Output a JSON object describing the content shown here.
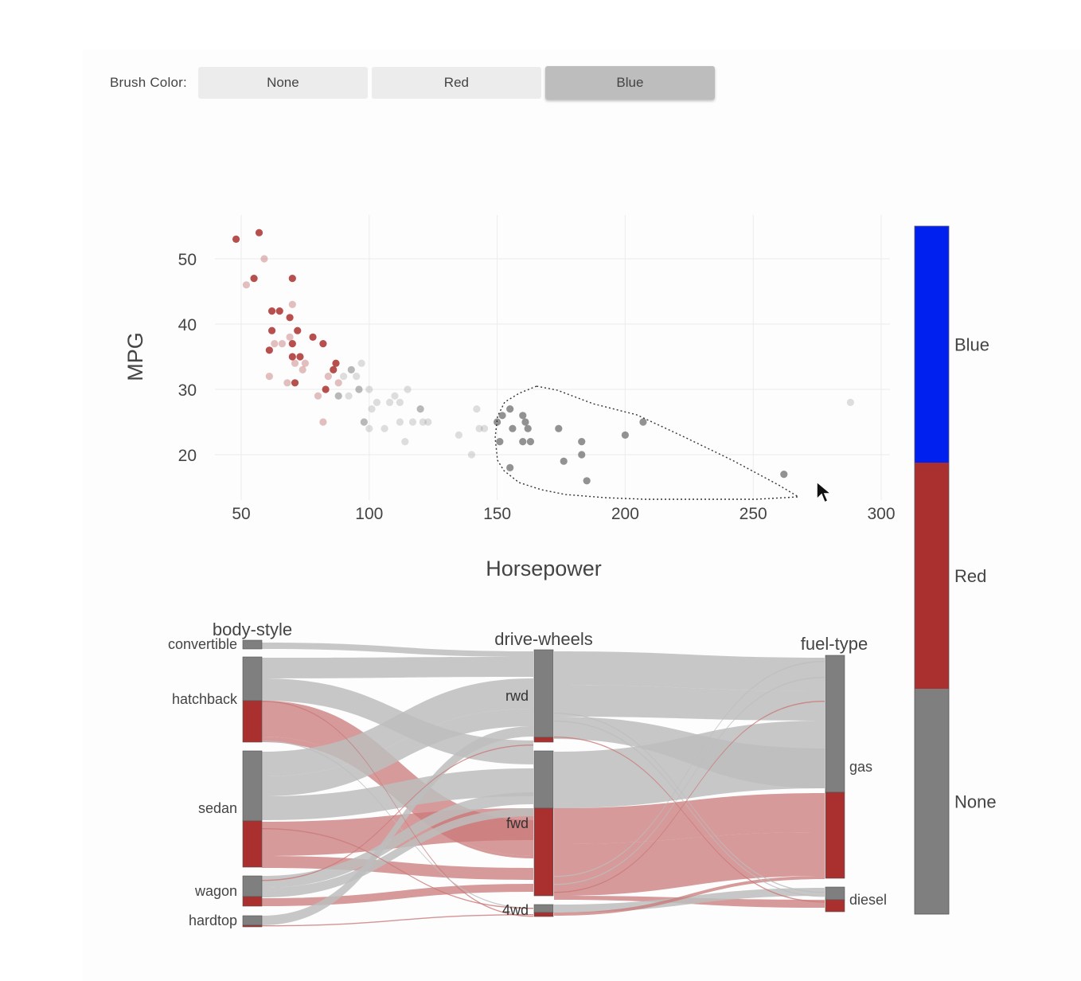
{
  "toolbar": {
    "label": "Brush Color:",
    "buttons": [
      {
        "label": "None",
        "active": false
      },
      {
        "label": "Red",
        "active": false
      },
      {
        "label": "Blue",
        "active": true
      }
    ]
  },
  "colors": {
    "none": "#7f7f7f",
    "red": "#a9302e",
    "blue": "#0020f0",
    "link_grey": "#bdbdbd",
    "link_red": "#c97878"
  },
  "chart_data": [
    {
      "type": "scatter",
      "xlabel": "Horsepower",
      "ylabel": "MPG",
      "xlim": [
        40,
        303
      ],
      "ylim": [
        13,
        57
      ],
      "xticks": [
        50,
        100,
        150,
        200,
        250,
        300
      ],
      "yticks": [
        20,
        30,
        40,
        50
      ],
      "grid": true,
      "series": [
        {
          "name": "Red",
          "points": [
            [
              48,
              53
            ],
            [
              52,
              46
            ],
            [
              57,
              54
            ],
            [
              59,
              50
            ],
            [
              55,
              47
            ],
            [
              62,
              42
            ],
            [
              65,
              42
            ],
            [
              62,
              39
            ],
            [
              63,
              37
            ],
            [
              61,
              36
            ],
            [
              61,
              32
            ],
            [
              66,
              37
            ],
            [
              69,
              38
            ],
            [
              69,
              41
            ],
            [
              70,
              43
            ],
            [
              70,
              47
            ],
            [
              70,
              37
            ],
            [
              71,
              34
            ],
            [
              72,
              39
            ],
            [
              68,
              31
            ],
            [
              71,
              31
            ],
            [
              74,
              33
            ],
            [
              75,
              34
            ],
            [
              78,
              38
            ],
            [
              80,
              29
            ],
            [
              82,
              37
            ],
            [
              83,
              30
            ],
            [
              84,
              32
            ],
            [
              86,
              33
            ],
            [
              87,
              34
            ],
            [
              88,
              31
            ],
            [
              82,
              25
            ],
            [
              70,
              35
            ],
            [
              73,
              35
            ]
          ]
        },
        {
          "name": "None",
          "points": [
            [
              88,
              29
            ],
            [
              90,
              32
            ],
            [
              92,
              29
            ],
            [
              93,
              33
            ],
            [
              95,
              32
            ],
            [
              97,
              34
            ],
            [
              96,
              30
            ],
            [
              98,
              25
            ],
            [
              100,
              24
            ],
            [
              100,
              30
            ],
            [
              101,
              27
            ],
            [
              103,
              28
            ],
            [
              106,
              24
            ],
            [
              108,
              28
            ],
            [
              110,
              29
            ],
            [
              112,
              28
            ],
            [
              112,
              25
            ],
            [
              114,
              22
            ],
            [
              115,
              30
            ],
            [
              117,
              25
            ],
            [
              120,
              27
            ],
            [
              121,
              25
            ],
            [
              123,
              25
            ],
            [
              135,
              23
            ],
            [
              140,
              20
            ],
            [
              143,
              24
            ],
            [
              145,
              24
            ],
            [
              142,
              27
            ],
            [
              150,
              25
            ],
            [
              151,
              22
            ],
            [
              152,
              26
            ],
            [
              155,
              27
            ],
            [
              156,
              24
            ],
            [
              160,
              26
            ],
            [
              161,
              25
            ],
            [
              162,
              24
            ],
            [
              160,
              22
            ],
            [
              163,
              22
            ],
            [
              155,
              18
            ],
            [
              174,
              24
            ],
            [
              176,
              19
            ],
            [
              183,
              22
            ],
            [
              183,
              20
            ],
            [
              185,
              16
            ],
            [
              200,
              23
            ],
            [
              207,
              25
            ],
            [
              262,
              17
            ],
            [
              288,
              28
            ]
          ]
        }
      ]
    },
    {
      "type": "parcats",
      "dimensions": [
        {
          "label": "body-style",
          "categories": [
            "convertible",
            "hatchback",
            "sedan",
            "wagon",
            "hardtop"
          ]
        },
        {
          "label": "drive-wheels",
          "categories": [
            "rwd",
            "fwd",
            "4wd"
          ]
        },
        {
          "label": "fuel-type",
          "categories": [
            "gas",
            "diesel"
          ]
        }
      ],
      "color_categories": [
        "None",
        "Red"
      ]
    },
    {
      "type": "colorbar",
      "entries": [
        {
          "label": "Blue",
          "color": "#0020f0"
        },
        {
          "label": "Red",
          "color": "#a9302e"
        },
        {
          "label": "None",
          "color": "#7f7f7f"
        }
      ]
    }
  ]
}
